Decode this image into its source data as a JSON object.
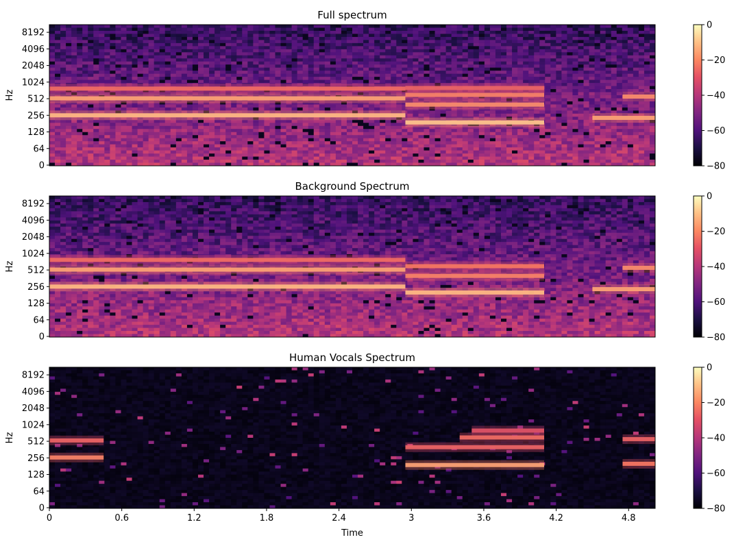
{
  "chart_data": [
    {
      "type": "heatmap",
      "title": "Full spectrum",
      "xlabel": "",
      "ylabel": "Hz",
      "y_scale": "log2",
      "y_ticks": [
        "0",
        "64",
        "128",
        "256",
        "512",
        "1024",
        "2048",
        "4096",
        "8192"
      ],
      "x_ticks": [],
      "x_range": [
        0,
        5.02
      ],
      "colorbar": {
        "range": [
          -80,
          0
        ],
        "ticks": [
          "0",
          "−20",
          "−40",
          "−60",
          "−80"
        ]
      },
      "bands": [
        {
          "hz": 256,
          "t0": 0.0,
          "t1": 2.95,
          "level": -8
        },
        {
          "hz": 520,
          "t0": 0.0,
          "t1": 2.95,
          "level": -12
        },
        {
          "hz": 780,
          "t0": 0.0,
          "t1": 2.95,
          "level": -22
        },
        {
          "hz": 190,
          "t0": 2.95,
          "t1": 4.1,
          "level": -6
        },
        {
          "hz": 400,
          "t0": 2.95,
          "t1": 4.1,
          "level": -16
        },
        {
          "hz": 600,
          "t0": 2.95,
          "t1": 4.1,
          "level": -18
        },
        {
          "hz": 800,
          "t0": 2.95,
          "t1": 4.1,
          "level": -24
        },
        {
          "hz": 230,
          "t0": 4.5,
          "t1": 5.02,
          "level": -12
        },
        {
          "hz": 560,
          "t0": 4.75,
          "t1": 5.02,
          "level": -16
        }
      ]
    },
    {
      "type": "heatmap",
      "title": "Background Spectrum",
      "xlabel": "",
      "ylabel": "Hz",
      "y_scale": "log2",
      "y_ticks": [
        "0",
        "64",
        "128",
        "256",
        "512",
        "1024",
        "2048",
        "4096",
        "8192"
      ],
      "x_ticks": [],
      "x_range": [
        0,
        5.02
      ],
      "colorbar": {
        "range": [
          -80,
          0
        ],
        "ticks": [
          "0",
          "−20",
          "−40",
          "−60",
          "−80"
        ]
      },
      "bands": [
        {
          "hz": 256,
          "t0": 0.0,
          "t1": 2.95,
          "level": -8
        },
        {
          "hz": 520,
          "t0": 0.0,
          "t1": 2.95,
          "level": -12
        },
        {
          "hz": 780,
          "t0": 0.0,
          "t1": 2.95,
          "level": -22
        },
        {
          "hz": 200,
          "t0": 2.95,
          "t1": 4.1,
          "level": -8
        },
        {
          "hz": 400,
          "t0": 2.95,
          "t1": 4.1,
          "level": -18
        },
        {
          "hz": 600,
          "t0": 2.95,
          "t1": 4.1,
          "level": -20
        },
        {
          "hz": 230,
          "t0": 4.5,
          "t1": 5.02,
          "level": -12
        },
        {
          "hz": 560,
          "t0": 4.75,
          "t1": 5.02,
          "level": -16
        }
      ]
    },
    {
      "type": "heatmap",
      "title": "Human Vocals Spectrum",
      "xlabel": "Time",
      "ylabel": "Hz",
      "y_scale": "log2",
      "y_ticks": [
        "0",
        "64",
        "128",
        "256",
        "512",
        "1024",
        "2048",
        "4096",
        "8192"
      ],
      "x_ticks": [
        "0",
        "0.6",
        "1.2",
        "1.8",
        "2.4",
        "3",
        "3.6",
        "4.2",
        "4.8"
      ],
      "x_range": [
        0,
        5.02
      ],
      "colorbar": {
        "range": [
          -80,
          0
        ],
        "ticks": [
          "0",
          "−20",
          "−40",
          "−60",
          "−80"
        ]
      },
      "bands": [
        {
          "hz": 260,
          "t0": 0.0,
          "t1": 0.45,
          "level": -18
        },
        {
          "hz": 530,
          "t0": 0.0,
          "t1": 0.45,
          "level": -24
        },
        {
          "hz": 190,
          "t0": 2.95,
          "t1": 4.1,
          "level": -12
        },
        {
          "hz": 400,
          "t0": 2.95,
          "t1": 4.1,
          "level": -24
        },
        {
          "hz": 600,
          "t0": 3.4,
          "t1": 4.1,
          "level": -22
        },
        {
          "hz": 800,
          "t0": 3.5,
          "t1": 4.1,
          "level": -28
        },
        {
          "hz": 200,
          "t0": 4.75,
          "t1": 5.02,
          "level": -20
        },
        {
          "hz": 560,
          "t0": 4.75,
          "t1": 5.02,
          "level": -24
        }
      ]
    }
  ]
}
